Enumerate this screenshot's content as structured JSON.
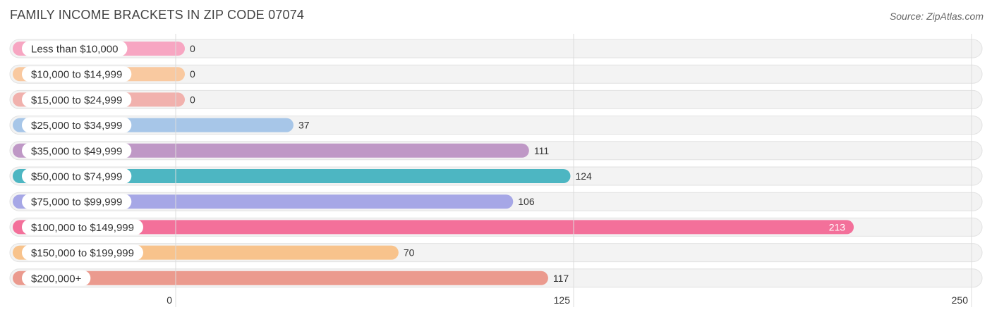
{
  "header": {
    "title": "FAMILY INCOME BRACKETS IN ZIP CODE 07074",
    "source": "Source: ZipAtlas.com"
  },
  "chart_data": {
    "type": "bar",
    "orientation": "horizontal",
    "title": "FAMILY INCOME BRACKETS IN ZIP CODE 07074",
    "categories": [
      "Less than $10,000",
      "$10,000 to $14,999",
      "$15,000 to $24,999",
      "$25,000 to $34,999",
      "$35,000 to $49,999",
      "$50,000 to $74,999",
      "$75,000 to $99,999",
      "$100,000 to $149,999",
      "$150,000 to $199,999",
      "$200,000+"
    ],
    "values": [
      0,
      0,
      0,
      37,
      111,
      124,
      106,
      213,
      70,
      117
    ],
    "colors": [
      "#f7a6c2",
      "#f9c9a0",
      "#f1b1ad",
      "#a7c6e8",
      "#bf98c6",
      "#4db6c2",
      "#a6a7e6",
      "#f3709a",
      "#f8c38c",
      "#eb9a8e"
    ],
    "xlim": [
      0,
      250
    ],
    "xticks": [
      0,
      125,
      250
    ],
    "grid": true,
    "legend": "none"
  }
}
